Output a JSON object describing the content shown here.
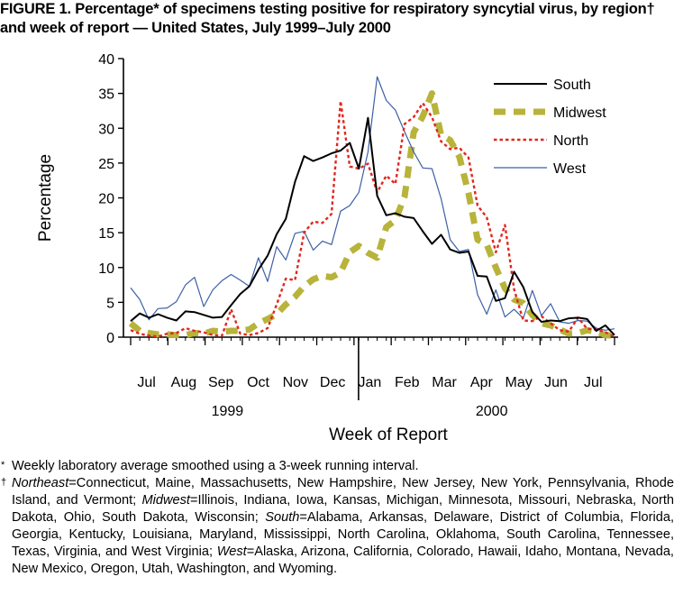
{
  "figure_title": "FIGURE 1. Percentage* of specimens testing positive for respiratory syncytial virus, by region† and week of report — United States, July 1999–July 2000",
  "footnotes": {
    "star_mark": "*",
    "star_text": "Weekly laboratory average smoothed using a 3-week running interval.",
    "dagger_mark": "†",
    "regions": [
      {
        "name": "Northeast",
        "states": "=Connecticut, Maine, Massachusetts, New Hampshire, New Jersey, New York, Pennsylvania, Rhode Island, and Vermont; "
      },
      {
        "name": "Midwest",
        "states": "=Illinois, Indiana, Iowa, Kansas, Michigan, Minnesota, Missouri, Nebraska, North Dakota, Ohio, South Dakota, Wisconsin; "
      },
      {
        "name": "South",
        "states": "=Alabama, Arkansas, Delaware, District of Columbia, Florida, Georgia, Kentucky, Louisiana, Maryland, Mississippi, North Carolina, Oklahoma, South Carolina, Tennessee, Texas, Virginia, and West Virginia; "
      },
      {
        "name": "West",
        "states": "=Alaska, Arizona, California, Colorado, Hawaii, Idaho, Montana, Nevada, New Mexico, Oregon, Utah, Washington, and Wyoming."
      }
    ]
  },
  "chart_data": {
    "type": "line",
    "title": "",
    "xlabel": "Week of Report",
    "ylabel": "Percentage",
    "ylim": [
      0,
      40
    ],
    "yticks": [
      0,
      5,
      10,
      15,
      20,
      25,
      30,
      35,
      40
    ],
    "x": [
      0,
      1,
      2,
      3,
      4,
      5,
      6,
      7,
      8,
      9,
      10,
      11,
      12,
      13,
      14,
      15,
      16,
      17,
      18,
      19,
      20,
      21,
      22,
      23,
      24,
      25,
      26,
      27,
      28,
      29,
      30,
      31,
      32,
      33,
      34,
      35,
      36,
      37,
      38,
      39,
      40,
      41,
      42,
      43,
      44,
      45,
      46,
      47,
      48,
      49,
      50,
      51,
      52,
      53
    ],
    "month_labels": [
      "Jul",
      "Aug",
      "Sep",
      "Oct",
      "Nov",
      "Dec",
      "Jan",
      "Feb",
      "Mar",
      "Apr",
      "May",
      "Jun",
      "Jul"
    ],
    "year_labels": [
      "1999",
      "2000"
    ],
    "legend_position": "top-right",
    "grid": false,
    "colors": {
      "South": "#000000",
      "Midwest": "#b8b33a",
      "North": "#e0271f",
      "West": "#3c5fa6"
    },
    "series": [
      {
        "name": "South",
        "style": "solid",
        "values": [
          2.3,
          3.4,
          2.8,
          3.3,
          2.8,
          2.4,
          3.7,
          3.6,
          3.2,
          2.8,
          2.9,
          4.6,
          6.2,
          7.3,
          9.7,
          11.7,
          14.8,
          17.0,
          22.3,
          26.0,
          25.3,
          25.8,
          26.4,
          26.8,
          27.9,
          24.2,
          31.5,
          20.3,
          17.5,
          17.8,
          17.3,
          17.1,
          15.2,
          13.4,
          14.7,
          12.6,
          12.1,
          12.3,
          8.8,
          8.7,
          5.2,
          5.6,
          9.4,
          7.2,
          3.6,
          2.2,
          2.4,
          2.3,
          2.7,
          2.8,
          2.6,
          0.9,
          1.7,
          0.3
        ]
      },
      {
        "name": "Midwest",
        "style": "dash",
        "values": [
          2.0,
          0.9,
          0.6,
          0.4,
          0.4,
          0.3,
          0.3,
          0.6,
          0.5,
          0.9,
          0.8,
          0.9,
          0.9,
          1.1,
          2.0,
          2.6,
          3.3,
          4.7,
          5.8,
          7.3,
          8.3,
          8.8,
          8.6,
          9.3,
          12.2,
          13.1,
          12.1,
          11.4,
          15.8,
          16.8,
          20.2,
          29.4,
          31.7,
          35.0,
          29.0,
          28.3,
          25.9,
          20.7,
          14.0,
          13.3,
          10.0,
          7.0,
          5.4,
          4.9,
          3.2,
          2.0,
          1.7,
          1.1,
          0.5,
          0.6,
          1.0,
          0.8,
          0.3,
          0.2
        ]
      },
      {
        "name": "North",
        "style": "dot",
        "values": [
          1.0,
          0.5,
          0.2,
          0.1,
          0.5,
          0.6,
          1.3,
          0.9,
          0.7,
          0.3,
          0.2,
          4.0,
          0.5,
          0.3,
          0.6,
          1.3,
          4.7,
          8.4,
          8.2,
          15.0,
          16.6,
          16.4,
          17.7,
          33.9,
          24.5,
          24.2,
          24.9,
          20.8,
          23.2,
          22.0,
          30.6,
          31.6,
          33.6,
          31.6,
          28.1,
          27.0,
          27.2,
          25.8,
          18.9,
          17.2,
          12.2,
          16.1,
          6.9,
          2.4,
          2.3,
          3.0,
          2.0,
          1.0,
          0.8,
          2.8,
          1.2,
          1.1,
          0.7,
          0.1
        ]
      },
      {
        "name": "West",
        "style": "solid",
        "values": [
          7.1,
          5.4,
          2.5,
          4.1,
          4.2,
          5.1,
          7.5,
          8.6,
          4.4,
          6.8,
          8.1,
          9.0,
          8.2,
          7.3,
          11.4,
          8.0,
          13.0,
          11.1,
          14.9,
          15.2,
          12.5,
          13.8,
          13.3,
          18.1,
          18.9,
          20.8,
          26.6,
          37.4,
          34.0,
          32.6,
          29.5,
          26.6,
          24.3,
          24.2,
          19.9,
          14.0,
          12.3,
          12.6,
          6.1,
          3.3,
          6.8,
          2.9,
          4.0,
          2.7,
          6.7,
          3.1,
          4.8,
          2.2,
          2.0,
          2.4,
          2.3,
          1.3,
          1.0,
          1.2
        ]
      }
    ]
  }
}
